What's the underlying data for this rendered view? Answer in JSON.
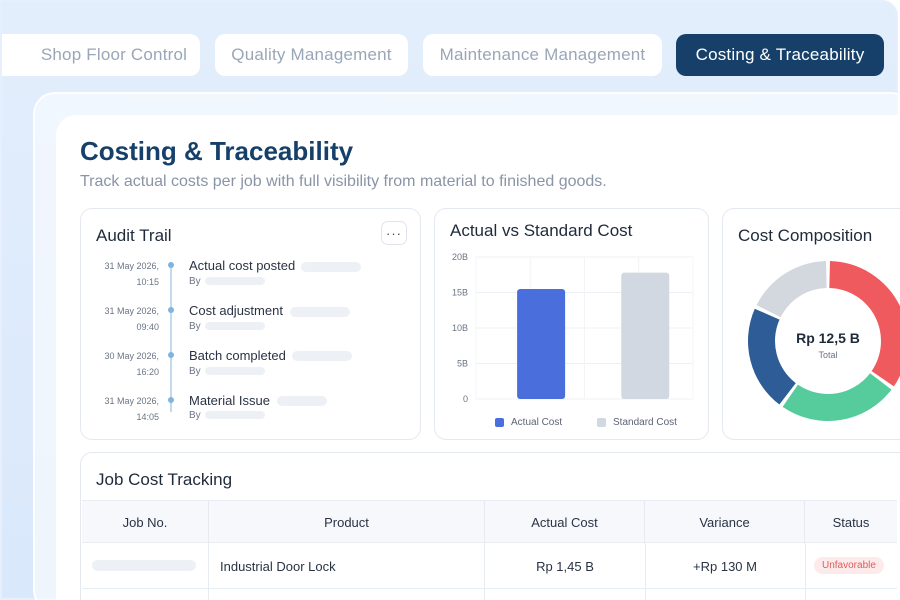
{
  "tabs": [
    {
      "label": "Shop Floor Control",
      "active": false
    },
    {
      "label": "Quality Management",
      "active": false
    },
    {
      "label": "Maintenance Management",
      "active": false
    },
    {
      "label": "Costing & Traceability",
      "active": true
    }
  ],
  "page": {
    "title": "Costing & Traceability",
    "subtitle": "Track actual costs per job with full visibility from material to finished goods."
  },
  "audit_trail": {
    "title": "Audit Trail",
    "more_label": "···",
    "entries": [
      {
        "date": "31 May 2026,",
        "time": "10:15",
        "label": "Actual cost posted",
        "by": "By"
      },
      {
        "date": "31 May 2026,",
        "time": "09:40",
        "label": "Cost adjustment",
        "by": "By"
      },
      {
        "date": "30 May 2026,",
        "time": "16:20",
        "label": "Batch completed",
        "by": "By"
      },
      {
        "date": "31 May 2026,",
        "time": "14:05",
        "label": "Material Issue",
        "by": "By"
      }
    ]
  },
  "chart_data": [
    {
      "type": "bar",
      "title": "Actual vs Standard Cost",
      "categories": [
        "Actual Cost",
        "Standard Cost"
      ],
      "values": [
        15.5,
        17.8
      ],
      "ylim": [
        0,
        20
      ],
      "yticks": [
        "0",
        "5B",
        "10B",
        "15B",
        "20B"
      ],
      "ytick_values": [
        0,
        5,
        10,
        15,
        20
      ],
      "colors": [
        "#4a6fdc",
        "#d1d8e1"
      ],
      "legend": [
        "Actual Cost",
        "Standard Cost"
      ],
      "legend_position": "bottom",
      "grid": true
    },
    {
      "type": "pie",
      "title": "Cost Composition",
      "center_value": "Rp 12,5 B",
      "center_label": "Total",
      "slices": [
        {
          "value": 35,
          "color": "#ef5a5f"
        },
        {
          "value": 25,
          "color": "#56cc9d"
        },
        {
          "value": 22,
          "color": "#2e5c96"
        },
        {
          "value": 18,
          "color": "#d3d8de"
        }
      ]
    }
  ],
  "job_table": {
    "title": "Job Cost Tracking",
    "columns": [
      "Job No.",
      "Product",
      "Actual Cost",
      "Variance",
      "Status"
    ],
    "rows": [
      {
        "job_no": "",
        "product": "Industrial Door Lock",
        "actual_cost": "Rp 1,45 B",
        "variance": "+Rp 130 M",
        "status": "Unfavorable"
      }
    ]
  },
  "colors": {
    "accent": "#16406a",
    "actual_bar": "#4a6fdc",
    "standard_bar": "#d1d8e1",
    "unfavorable": "#e25c5c"
  }
}
